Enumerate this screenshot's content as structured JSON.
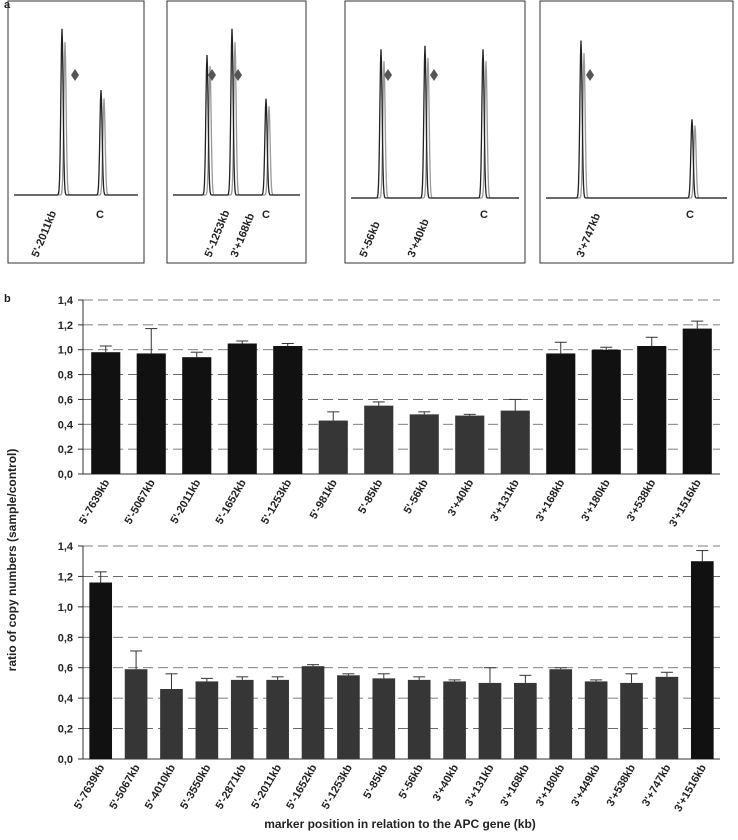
{
  "panel_a": {
    "label": "a",
    "traces": [
      {
        "markers": [
          "5'-2011kb"
        ],
        "control": "C"
      },
      {
        "markers": [
          "5'-1253kb",
          "3'+168kb"
        ],
        "control": "C"
      },
      {
        "markers": [
          "5'-56kb",
          "3'+40kb"
        ],
        "control": "C"
      },
      {
        "markers": [
          "3'+747kb"
        ],
        "control": "C"
      }
    ]
  },
  "panel_b": {
    "label": "b",
    "y_label": "ratio of copy numbers (sample/control)",
    "x_label": "marker position in relation to the APC gene (kb)"
  },
  "chart_data": [
    {
      "type": "bar",
      "categories": [
        "5'-7639kb",
        "5'-5067kb",
        "5'-2011kb",
        "5'-1652kb",
        "5'-1253kb",
        "5'-981kb",
        "5'-85kb",
        "5'-56kb",
        "3'+40kb",
        "3'+131kb",
        "3'+168kb",
        "3'+180kb",
        "3'+538kb",
        "3'+1516kb"
      ],
      "values": [
        0.98,
        0.97,
        0.94,
        1.05,
        1.03,
        0.43,
        0.55,
        0.48,
        0.47,
        0.51,
        0.97,
        1.0,
        1.03,
        1.17
      ],
      "errors": [
        0.05,
        0.2,
        0.04,
        0.02,
        0.02,
        0.07,
        0.03,
        0.02,
        0.01,
        0.09,
        0.09,
        0.02,
        0.07,
        0.06
      ],
      "colors": [
        "#111111",
        "#111111",
        "#111111",
        "#111111",
        "#111111",
        "#363636",
        "#363636",
        "#363636",
        "#363636",
        "#363636",
        "#111111",
        "#111111",
        "#111111",
        "#111111"
      ],
      "ylim": [
        0,
        1.4
      ],
      "yticks": [
        {
          "value": 0,
          "label": "0,0"
        },
        {
          "value": 0.2,
          "label": "0,2"
        },
        {
          "value": 0.4,
          "label": "0,4"
        },
        {
          "value": 0.6,
          "label": "0,6"
        },
        {
          "value": 0.8,
          "label": "0,8"
        },
        {
          "value": 1.0,
          "label": "1,0"
        },
        {
          "value": 1.2,
          "label": "1,2"
        },
        {
          "value": 1.4,
          "label": "1,4"
        }
      ],
      "grid": true
    },
    {
      "type": "bar",
      "categories": [
        "5'-7639kb",
        "5'-5067kb",
        "5'-4010kb",
        "5'-3550kb",
        "5'-2871kb",
        "5'-2011kb",
        "5'-1652kb",
        "5'-1253kb",
        "5'-85kb",
        "5'-56kb",
        "3'+40kb",
        "3'+131kb",
        "3'+168kb",
        "3'+180kb",
        "3'+449kb",
        "3'+538kb",
        "3'+747kb",
        "3'+1516kb"
      ],
      "values": [
        1.16,
        0.59,
        0.46,
        0.51,
        0.52,
        0.52,
        0.61,
        0.55,
        0.53,
        0.52,
        0.51,
        0.5,
        0.5,
        0.59,
        0.51,
        0.5,
        0.54,
        1.3
      ],
      "errors": [
        0.07,
        0.12,
        0.1,
        0.02,
        0.02,
        0.02,
        0.01,
        0.01,
        0.03,
        0.02,
        0.01,
        0.1,
        0.05,
        0.01,
        0.01,
        0.06,
        0.03,
        0.07
      ],
      "colors": [
        "#111111",
        "#363636",
        "#363636",
        "#363636",
        "#363636",
        "#363636",
        "#363636",
        "#363636",
        "#363636",
        "#363636",
        "#363636",
        "#363636",
        "#363636",
        "#363636",
        "#363636",
        "#363636",
        "#363636",
        "#111111"
      ],
      "ylim": [
        0,
        1.4
      ],
      "yticks": [
        {
          "value": 0,
          "label": "0,0"
        },
        {
          "value": 0.2,
          "label": "0,2"
        },
        {
          "value": 0.4,
          "label": "0,4"
        },
        {
          "value": 0.6,
          "label": "0,6"
        },
        {
          "value": 0.8,
          "label": "0,8"
        },
        {
          "value": 1.0,
          "label": "1,0"
        },
        {
          "value": 1.2,
          "label": "1,2"
        },
        {
          "value": 1.4,
          "label": "1,4"
        }
      ],
      "grid": true
    }
  ]
}
